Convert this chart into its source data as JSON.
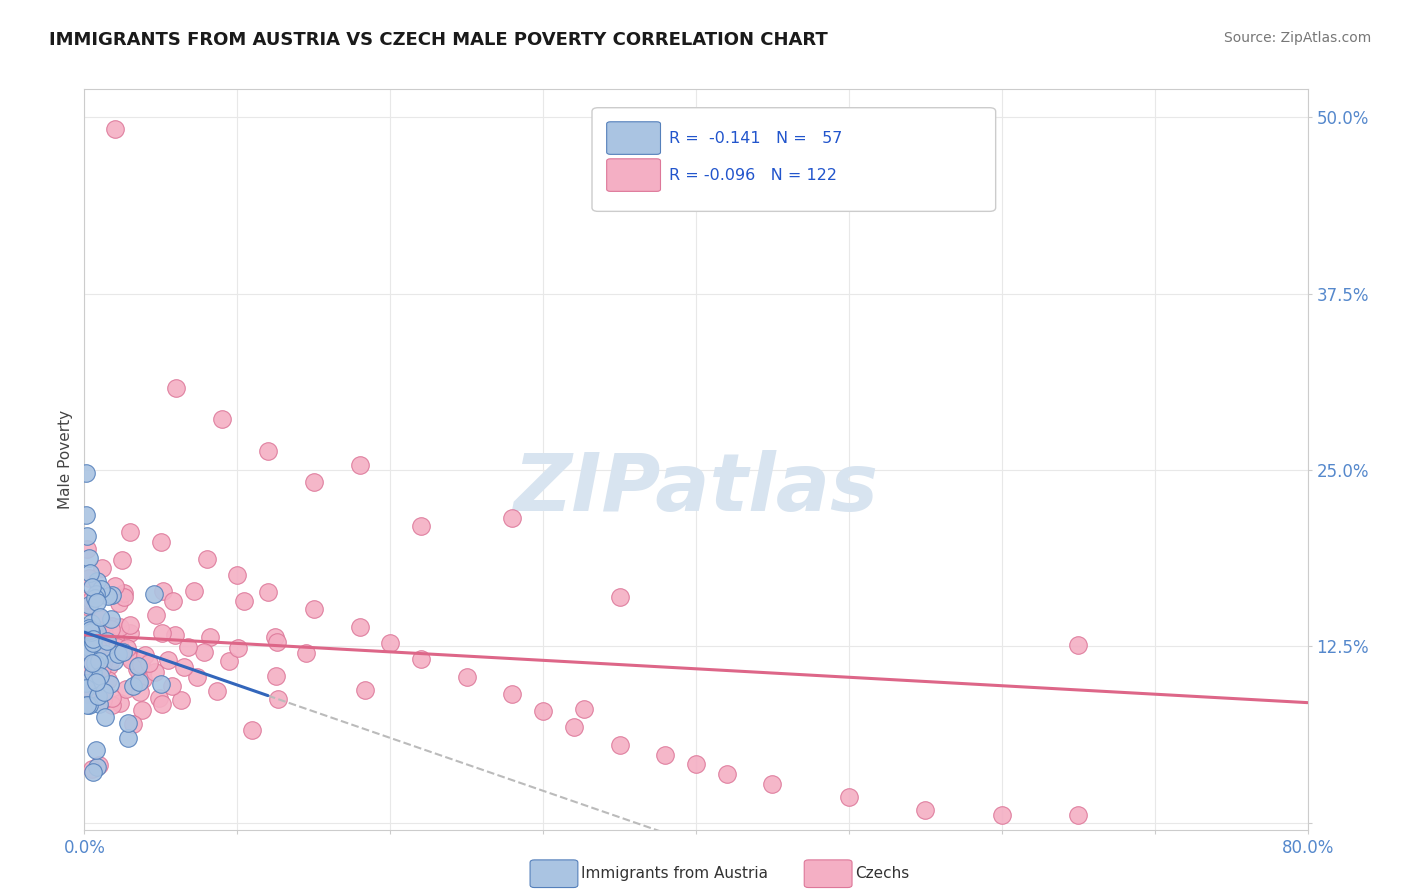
{
  "title": "IMMIGRANTS FROM AUSTRIA VS CZECH MALE POVERTY CORRELATION CHART",
  "source": "Source: ZipAtlas.com",
  "ylabel": "Male Poverty",
  "xlim": [
    0.0,
    0.8
  ],
  "ylim": [
    -0.005,
    0.52
  ],
  "xticks": [
    0.0,
    0.1,
    0.2,
    0.3,
    0.4,
    0.5,
    0.6,
    0.7,
    0.8
  ],
  "ytick_positions": [
    0.0,
    0.125,
    0.25,
    0.375,
    0.5
  ],
  "ytick_labels": [
    "",
    "12.5%",
    "25.0%",
    "37.5%",
    "50.0%"
  ],
  "austria_color": "#aac4e2",
  "czech_color": "#f4afc4",
  "austria_edge": "#5580bb",
  "czech_edge": "#dd7799",
  "trendline_austria_color": "#3366bb",
  "trendline_czech_color": "#dd6688",
  "background_color": "#ffffff",
  "grid_color": "#e8e8e8",
  "watermark_color": "#d8e4f0",
  "tick_color": "#5588cc"
}
